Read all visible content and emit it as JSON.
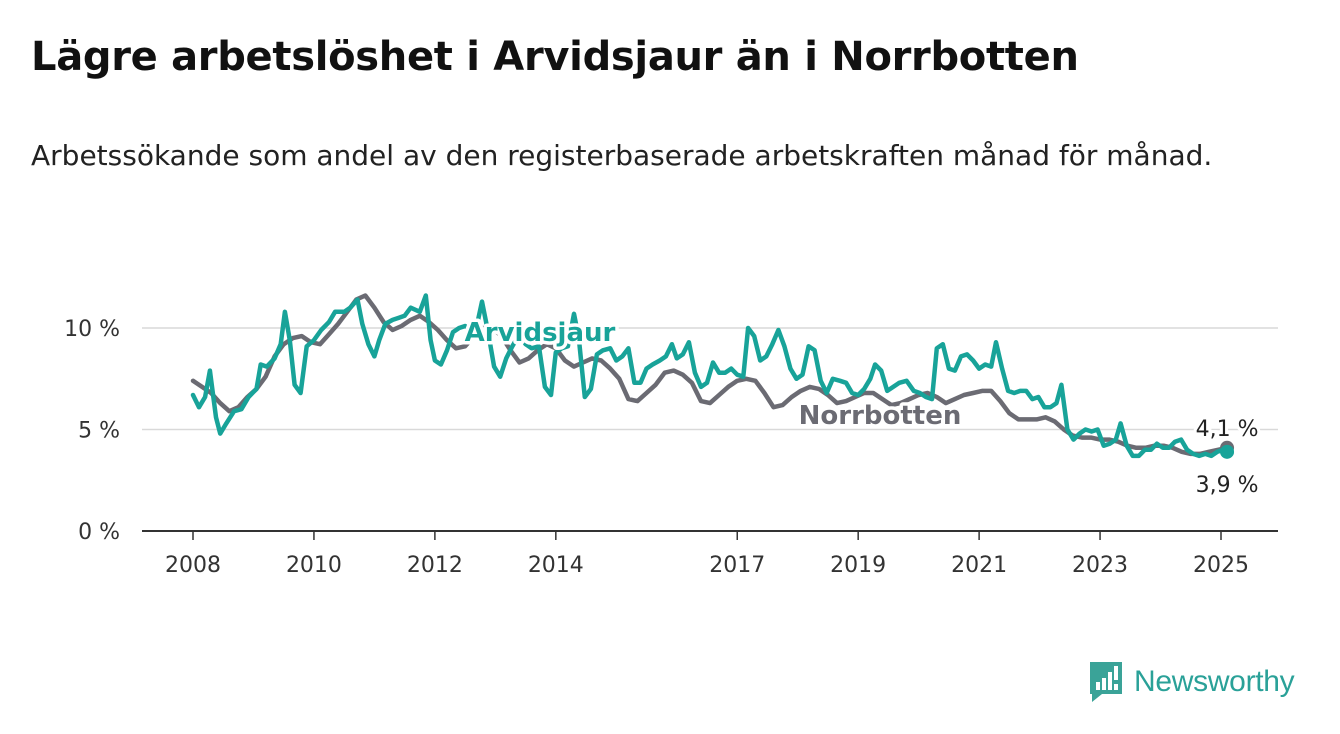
{
  "header": {
    "title": "Lägre arbetslöshet i Arvidsjaur än i Norrbotten",
    "subtitle": "Arbetssökande som andel av den registerbaserade arbetskraften månad för månad."
  },
  "brand": {
    "name": "Newsworthy",
    "color": "#3aa398"
  },
  "chart_data": {
    "type": "line",
    "y_unit": "%",
    "ylim": [
      0,
      12
    ],
    "yticks": [
      {
        "value": 0,
        "label": "0 %"
      },
      {
        "value": 5,
        "label": "5 %"
      },
      {
        "value": 10,
        "label": "10 %"
      }
    ],
    "xlim": [
      2007.8,
      2025.5
    ],
    "xticks": [
      2008,
      2010,
      2012,
      2014,
      2017,
      2019,
      2021,
      2023,
      2025
    ],
    "grid": true,
    "series": [
      {
        "name": "Norrbotten",
        "color": "#6b6b73",
        "end_label": "4,1 %",
        "points": [
          [
            2008.0,
            7.4
          ],
          [
            2008.15,
            7.1
          ],
          [
            2008.3,
            6.8
          ],
          [
            2008.45,
            6.3
          ],
          [
            2008.6,
            5.9
          ],
          [
            2008.75,
            6.1
          ],
          [
            2008.9,
            6.6
          ],
          [
            2009.05,
            7.0
          ],
          [
            2009.2,
            7.6
          ],
          [
            2009.35,
            8.6
          ],
          [
            2009.5,
            9.2
          ],
          [
            2009.65,
            9.5
          ],
          [
            2009.8,
            9.6
          ],
          [
            2009.95,
            9.3
          ],
          [
            2010.1,
            9.2
          ],
          [
            2010.25,
            9.7
          ],
          [
            2010.4,
            10.2
          ],
          [
            2010.55,
            10.8
          ],
          [
            2010.7,
            11.4
          ],
          [
            2010.85,
            11.6
          ],
          [
            2011.0,
            11.0
          ],
          [
            2011.15,
            10.3
          ],
          [
            2011.3,
            9.9
          ],
          [
            2011.45,
            10.1
          ],
          [
            2011.6,
            10.4
          ],
          [
            2011.75,
            10.6
          ],
          [
            2011.9,
            10.3
          ],
          [
            2012.05,
            9.9
          ],
          [
            2012.2,
            9.4
          ],
          [
            2012.35,
            9.0
          ],
          [
            2012.5,
            9.1
          ],
          [
            2012.65,
            9.6
          ],
          [
            2012.8,
            10.0
          ],
          [
            2012.95,
            10.0
          ],
          [
            2013.1,
            9.6
          ],
          [
            2013.25,
            8.9
          ],
          [
            2013.4,
            8.3
          ],
          [
            2013.55,
            8.5
          ],
          [
            2013.7,
            8.9
          ],
          [
            2013.85,
            9.2
          ],
          [
            2014.0,
            9.0
          ],
          [
            2014.15,
            8.4
          ],
          [
            2014.3,
            8.1
          ],
          [
            2014.45,
            8.3
          ],
          [
            2014.6,
            8.5
          ],
          [
            2014.75,
            8.4
          ],
          [
            2014.9,
            8.0
          ],
          [
            2015.05,
            7.5
          ],
          [
            2015.2,
            6.5
          ],
          [
            2015.35,
            6.4
          ],
          [
            2015.5,
            6.8
          ],
          [
            2015.65,
            7.2
          ],
          [
            2015.8,
            7.8
          ],
          [
            2015.95,
            7.9
          ],
          [
            2016.1,
            7.7
          ],
          [
            2016.25,
            7.3
          ],
          [
            2016.4,
            6.4
          ],
          [
            2016.55,
            6.3
          ],
          [
            2016.7,
            6.7
          ],
          [
            2016.85,
            7.1
          ],
          [
            2017.0,
            7.4
          ],
          [
            2017.15,
            7.5
          ],
          [
            2017.3,
            7.4
          ],
          [
            2017.45,
            6.8
          ],
          [
            2017.6,
            6.1
          ],
          [
            2017.75,
            6.2
          ],
          [
            2017.9,
            6.6
          ],
          [
            2018.05,
            6.9
          ],
          [
            2018.2,
            7.1
          ],
          [
            2018.35,
            7.0
          ],
          [
            2018.5,
            6.7
          ],
          [
            2018.65,
            6.3
          ],
          [
            2018.8,
            6.4
          ],
          [
            2018.95,
            6.6
          ],
          [
            2019.1,
            6.8
          ],
          [
            2019.25,
            6.8
          ],
          [
            2019.4,
            6.5
          ],
          [
            2019.55,
            6.2
          ],
          [
            2019.7,
            6.3
          ],
          [
            2019.85,
            6.5
          ],
          [
            2020.0,
            6.7
          ],
          [
            2020.15,
            6.8
          ],
          [
            2020.3,
            6.6
          ],
          [
            2020.45,
            6.3
          ],
          [
            2020.6,
            6.5
          ],
          [
            2020.75,
            6.7
          ],
          [
            2020.9,
            6.8
          ],
          [
            2021.05,
            6.9
          ],
          [
            2021.2,
            6.9
          ],
          [
            2021.35,
            6.4
          ],
          [
            2021.5,
            5.8
          ],
          [
            2021.65,
            5.5
          ],
          [
            2021.8,
            5.5
          ],
          [
            2021.95,
            5.5
          ],
          [
            2022.1,
            5.6
          ],
          [
            2022.25,
            5.4
          ],
          [
            2022.4,
            5.0
          ],
          [
            2022.55,
            4.7
          ],
          [
            2022.7,
            4.6
          ],
          [
            2022.85,
            4.6
          ],
          [
            2023.0,
            4.5
          ],
          [
            2023.15,
            4.5
          ],
          [
            2023.3,
            4.4
          ],
          [
            2023.45,
            4.2
          ],
          [
            2023.6,
            4.1
          ],
          [
            2023.75,
            4.1
          ],
          [
            2023.9,
            4.2
          ],
          [
            2024.05,
            4.2
          ],
          [
            2024.2,
            4.1
          ],
          [
            2024.35,
            3.9
          ],
          [
            2024.5,
            3.8
          ],
          [
            2024.65,
            3.8
          ],
          [
            2024.8,
            3.9
          ],
          [
            2024.95,
            4.0
          ],
          [
            2025.1,
            4.1
          ]
        ]
      },
      {
        "name": "Arvidsjaur",
        "color": "#18a399",
        "end_label": "3,9 %",
        "points": [
          [
            2008.0,
            6.7
          ],
          [
            2008.1,
            6.1
          ],
          [
            2008.2,
            6.6
          ],
          [
            2008.28,
            7.9
          ],
          [
            2008.38,
            5.6
          ],
          [
            2008.45,
            4.8
          ],
          [
            2008.55,
            5.3
          ],
          [
            2008.68,
            5.9
          ],
          [
            2008.8,
            6.0
          ],
          [
            2008.92,
            6.6
          ],
          [
            2009.05,
            7.0
          ],
          [
            2009.12,
            8.2
          ],
          [
            2009.22,
            8.1
          ],
          [
            2009.35,
            8.5
          ],
          [
            2009.45,
            9.2
          ],
          [
            2009.52,
            10.8
          ],
          [
            2009.6,
            9.4
          ],
          [
            2009.68,
            7.2
          ],
          [
            2009.78,
            6.8
          ],
          [
            2009.88,
            9.1
          ],
          [
            2010.0,
            9.4
          ],
          [
            2010.12,
            9.9
          ],
          [
            2010.25,
            10.3
          ],
          [
            2010.35,
            10.8
          ],
          [
            2010.5,
            10.8
          ],
          [
            2010.6,
            11.0
          ],
          [
            2010.72,
            11.4
          ],
          [
            2010.8,
            10.2
          ],
          [
            2010.9,
            9.2
          ],
          [
            2011.0,
            8.6
          ],
          [
            2011.08,
            9.4
          ],
          [
            2011.18,
            10.2
          ],
          [
            2011.3,
            10.4
          ],
          [
            2011.4,
            10.5
          ],
          [
            2011.5,
            10.6
          ],
          [
            2011.6,
            11.0
          ],
          [
            2011.75,
            10.8
          ],
          [
            2011.85,
            11.6
          ],
          [
            2011.93,
            9.4
          ],
          [
            2012.0,
            8.4
          ],
          [
            2012.1,
            8.2
          ],
          [
            2012.2,
            8.9
          ],
          [
            2012.3,
            9.8
          ],
          [
            2012.4,
            10.0
          ],
          [
            2012.5,
            10.1
          ],
          [
            2012.6,
            9.9
          ],
          [
            2012.7,
            10.2
          ],
          [
            2012.78,
            11.3
          ],
          [
            2012.88,
            9.8
          ],
          [
            2012.98,
            8.1
          ],
          [
            2013.08,
            7.6
          ],
          [
            2013.18,
            8.5
          ],
          [
            2013.28,
            9.1
          ],
          [
            2013.4,
            9.7
          ],
          [
            2013.5,
            9.2
          ],
          [
            2013.6,
            9.0
          ],
          [
            2013.72,
            9.1
          ],
          [
            2013.82,
            7.1
          ],
          [
            2013.92,
            6.7
          ],
          [
            2014.0,
            8.8
          ],
          [
            2014.1,
            9.0
          ],
          [
            2014.2,
            9.1
          ],
          [
            2014.3,
            10.7
          ],
          [
            2014.38,
            9.5
          ],
          [
            2014.48,
            6.6
          ],
          [
            2014.58,
            7.0
          ],
          [
            2014.68,
            8.7
          ],
          [
            2014.78,
            8.9
          ],
          [
            2014.9,
            9.0
          ],
          [
            2015.0,
            8.4
          ],
          [
            2015.1,
            8.6
          ],
          [
            2015.2,
            9.0
          ],
          [
            2015.3,
            7.3
          ],
          [
            2015.4,
            7.3
          ],
          [
            2015.5,
            8.0
          ],
          [
            2015.6,
            8.2
          ],
          [
            2015.72,
            8.4
          ],
          [
            2015.82,
            8.6
          ],
          [
            2015.92,
            9.2
          ],
          [
            2016.0,
            8.5
          ],
          [
            2016.1,
            8.7
          ],
          [
            2016.2,
            9.3
          ],
          [
            2016.3,
            7.8
          ],
          [
            2016.4,
            7.1
          ],
          [
            2016.5,
            7.3
          ],
          [
            2016.6,
            8.3
          ],
          [
            2016.7,
            7.8
          ],
          [
            2016.8,
            7.8
          ],
          [
            2016.9,
            8.0
          ],
          [
            2017.0,
            7.7
          ],
          [
            2017.1,
            7.6
          ],
          [
            2017.18,
            10.0
          ],
          [
            2017.28,
            9.6
          ],
          [
            2017.38,
            8.4
          ],
          [
            2017.48,
            8.6
          ],
          [
            2017.58,
            9.2
          ],
          [
            2017.68,
            9.9
          ],
          [
            2017.78,
            9.1
          ],
          [
            2017.88,
            8.0
          ],
          [
            2017.98,
            7.5
          ],
          [
            2018.08,
            7.7
          ],
          [
            2018.18,
            9.1
          ],
          [
            2018.28,
            8.9
          ],
          [
            2018.38,
            7.4
          ],
          [
            2018.48,
            6.8
          ],
          [
            2018.58,
            7.5
          ],
          [
            2018.7,
            7.4
          ],
          [
            2018.8,
            7.3
          ],
          [
            2018.9,
            6.8
          ],
          [
            2019.0,
            6.7
          ],
          [
            2019.1,
            7.0
          ],
          [
            2019.2,
            7.5
          ],
          [
            2019.28,
            8.2
          ],
          [
            2019.38,
            7.9
          ],
          [
            2019.48,
            6.9
          ],
          [
            2019.58,
            7.1
          ],
          [
            2019.68,
            7.3
          ],
          [
            2019.8,
            7.4
          ],
          [
            2019.92,
            6.9
          ],
          [
            2020.02,
            6.8
          ],
          [
            2020.12,
            6.6
          ],
          [
            2020.22,
            6.5
          ],
          [
            2020.3,
            9.0
          ],
          [
            2020.4,
            9.2
          ],
          [
            2020.5,
            8.0
          ],
          [
            2020.6,
            7.9
          ],
          [
            2020.7,
            8.6
          ],
          [
            2020.8,
            8.7
          ],
          [
            2020.9,
            8.4
          ],
          [
            2021.0,
            8.0
          ],
          [
            2021.1,
            8.2
          ],
          [
            2021.2,
            8.1
          ],
          [
            2021.28,
            9.3
          ],
          [
            2021.38,
            8.0
          ],
          [
            2021.48,
            6.9
          ],
          [
            2021.58,
            6.8
          ],
          [
            2021.68,
            6.9
          ],
          [
            2021.78,
            6.9
          ],
          [
            2021.88,
            6.5
          ],
          [
            2021.98,
            6.6
          ],
          [
            2022.08,
            6.1
          ],
          [
            2022.18,
            6.1
          ],
          [
            2022.28,
            6.3
          ],
          [
            2022.36,
            7.2
          ],
          [
            2022.46,
            5.0
          ],
          [
            2022.56,
            4.5
          ],
          [
            2022.66,
            4.8
          ],
          [
            2022.76,
            5.0
          ],
          [
            2022.86,
            4.9
          ],
          [
            2022.96,
            5.0
          ],
          [
            2023.06,
            4.2
          ],
          [
            2023.16,
            4.3
          ],
          [
            2023.26,
            4.5
          ],
          [
            2023.34,
            5.3
          ],
          [
            2023.44,
            4.2
          ],
          [
            2023.54,
            3.7
          ],
          [
            2023.64,
            3.7
          ],
          [
            2023.74,
            4.0
          ],
          [
            2023.84,
            4.0
          ],
          [
            2023.94,
            4.3
          ],
          [
            2024.04,
            4.1
          ],
          [
            2024.14,
            4.1
          ],
          [
            2024.24,
            4.4
          ],
          [
            2024.34,
            4.5
          ],
          [
            2024.44,
            4.0
          ],
          [
            2024.54,
            3.8
          ],
          [
            2024.64,
            3.7
          ],
          [
            2024.74,
            3.8
          ],
          [
            2024.84,
            3.7
          ],
          [
            2024.94,
            3.9
          ],
          [
            2025.04,
            4.0
          ],
          [
            2025.1,
            3.9
          ]
        ]
      }
    ]
  }
}
